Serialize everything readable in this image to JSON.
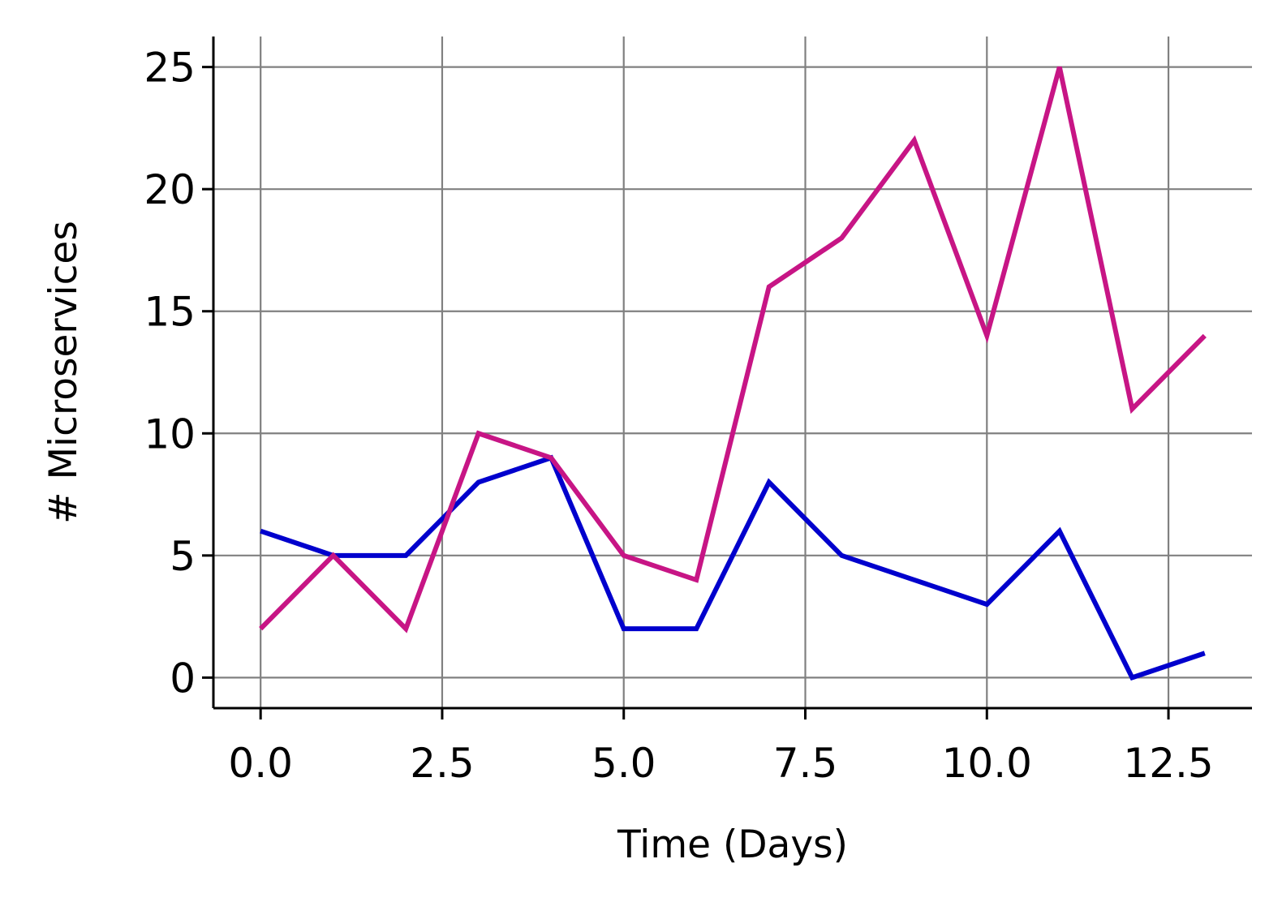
{
  "chart_data": {
    "type": "line",
    "title": "",
    "xlabel": "Time (Days)",
    "ylabel": "# Microservices",
    "xlim": [
      -0.65,
      13.65
    ],
    "ylim": [
      -1.25,
      26.25
    ],
    "x_ticks": [
      0.0,
      2.5,
      5.0,
      7.5,
      10.0,
      12.5
    ],
    "x_tick_labels": [
      "0.0",
      "2.5",
      "5.0",
      "7.5",
      "10.0",
      "12.5"
    ],
    "y_ticks": [
      0,
      5,
      10,
      15,
      20,
      25
    ],
    "y_tick_labels": [
      "0",
      "5",
      "10",
      "15",
      "20",
      "25"
    ],
    "grid": true,
    "legend": "none",
    "x": [
      0,
      1,
      2,
      3,
      4,
      5,
      6,
      7,
      8,
      9,
      10,
      11,
      12,
      13
    ],
    "series": [
      {
        "color": "#0000cd",
        "values": [
          6,
          5,
          5,
          8,
          9,
          2,
          2,
          8,
          5,
          4,
          3,
          6,
          0,
          1
        ]
      },
      {
        "color": "#c71585",
        "values": [
          2,
          5,
          2,
          10,
          9,
          5,
          4,
          16,
          18,
          22,
          14,
          25,
          11,
          14
        ]
      }
    ]
  }
}
